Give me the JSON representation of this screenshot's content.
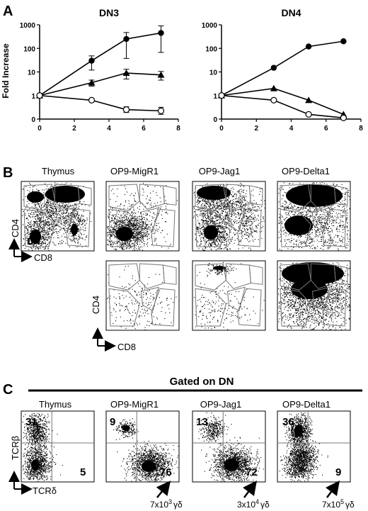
{
  "panel_labels": [
    "A",
    "B",
    "C"
  ],
  "panel_a": {
    "ylabel": "Fold Increase",
    "yticks": [
      "1000",
      "100",
      "10",
      "1",
      "0"
    ],
    "xticks": [
      "0",
      "2",
      "4",
      "6",
      "8"
    ]
  },
  "panel_b": {
    "columns": [
      "Thymus",
      "OP9-MigR1",
      "OP9-Jag1",
      "OP9-Delta1"
    ],
    "axis_y": "CD4",
    "axis_x": "CD8",
    "dn_label": "DN"
  },
  "panel_c": {
    "header": "Gated on DN",
    "columns": [
      "Thymus",
      "OP9-MigR1",
      "OP9-Jag1",
      "OP9-Delta1"
    ],
    "axis_y": "TCRβ",
    "axis_x": "TCRδ",
    "quadrant_values": [
      {
        "top_left": "31",
        "bottom_right": "5"
      },
      {
        "top_left": "9",
        "bottom_right": "76"
      },
      {
        "top_left": "13",
        "bottom_right": "72"
      },
      {
        "top_left": "36",
        "bottom_right": "9"
      }
    ],
    "gd_counts": [
      {
        "base": "7x10",
        "exp": "3",
        "unit": "γδ"
      },
      {
        "base": "3x10",
        "exp": "4",
        "unit": "γδ"
      },
      {
        "base": "7x10",
        "exp": "5",
        "unit": "γδ"
      }
    ]
  },
  "chart_data": [
    {
      "type": "line",
      "title": "DN3",
      "xlabel": "",
      "ylabel": "Fold Increase",
      "y_scale": "log",
      "xlim": [
        0,
        8
      ],
      "ylim": [
        0,
        1000
      ],
      "series": [
        {
          "marker": "filled-circle",
          "x": [
            0,
            3,
            5,
            7
          ],
          "values": [
            1,
            30,
            250,
            450
          ],
          "err": [
            0,
            18,
            220,
            450
          ]
        },
        {
          "marker": "filled-triangle",
          "x": [
            0,
            3,
            5,
            7
          ],
          "values": [
            1,
            3.5,
            9,
            7.5
          ],
          "err": [
            0,
            1,
            4,
            3
          ]
        },
        {
          "marker": "open-circle",
          "x": [
            0,
            3,
            5,
            7
          ],
          "values": [
            1,
            0.8,
            0.4,
            0.35
          ],
          "err": [
            0,
            0.05,
            0.12,
            0.15
          ]
        }
      ]
    },
    {
      "type": "line",
      "title": "DN4",
      "xlabel": "",
      "ylabel": "",
      "y_scale": "log",
      "xlim": [
        0,
        8
      ],
      "ylim": [
        0,
        1000
      ],
      "series": [
        {
          "marker": "filled-circle",
          "x": [
            0,
            3,
            5,
            7
          ],
          "values": [
            1,
            15,
            120,
            200
          ],
          "err": [
            0,
            0,
            0,
            0
          ]
        },
        {
          "marker": "filled-triangle",
          "x": [
            0,
            3,
            5,
            7
          ],
          "values": [
            1,
            2,
            0.8,
            0.2
          ],
          "err": [
            0,
            0,
            0,
            0
          ]
        },
        {
          "marker": "open-circle",
          "x": [
            0,
            3,
            5,
            7
          ],
          "values": [
            1,
            0.8,
            0.2,
            0.05
          ],
          "err": [
            0,
            0,
            0,
            0
          ]
        }
      ]
    }
  ]
}
